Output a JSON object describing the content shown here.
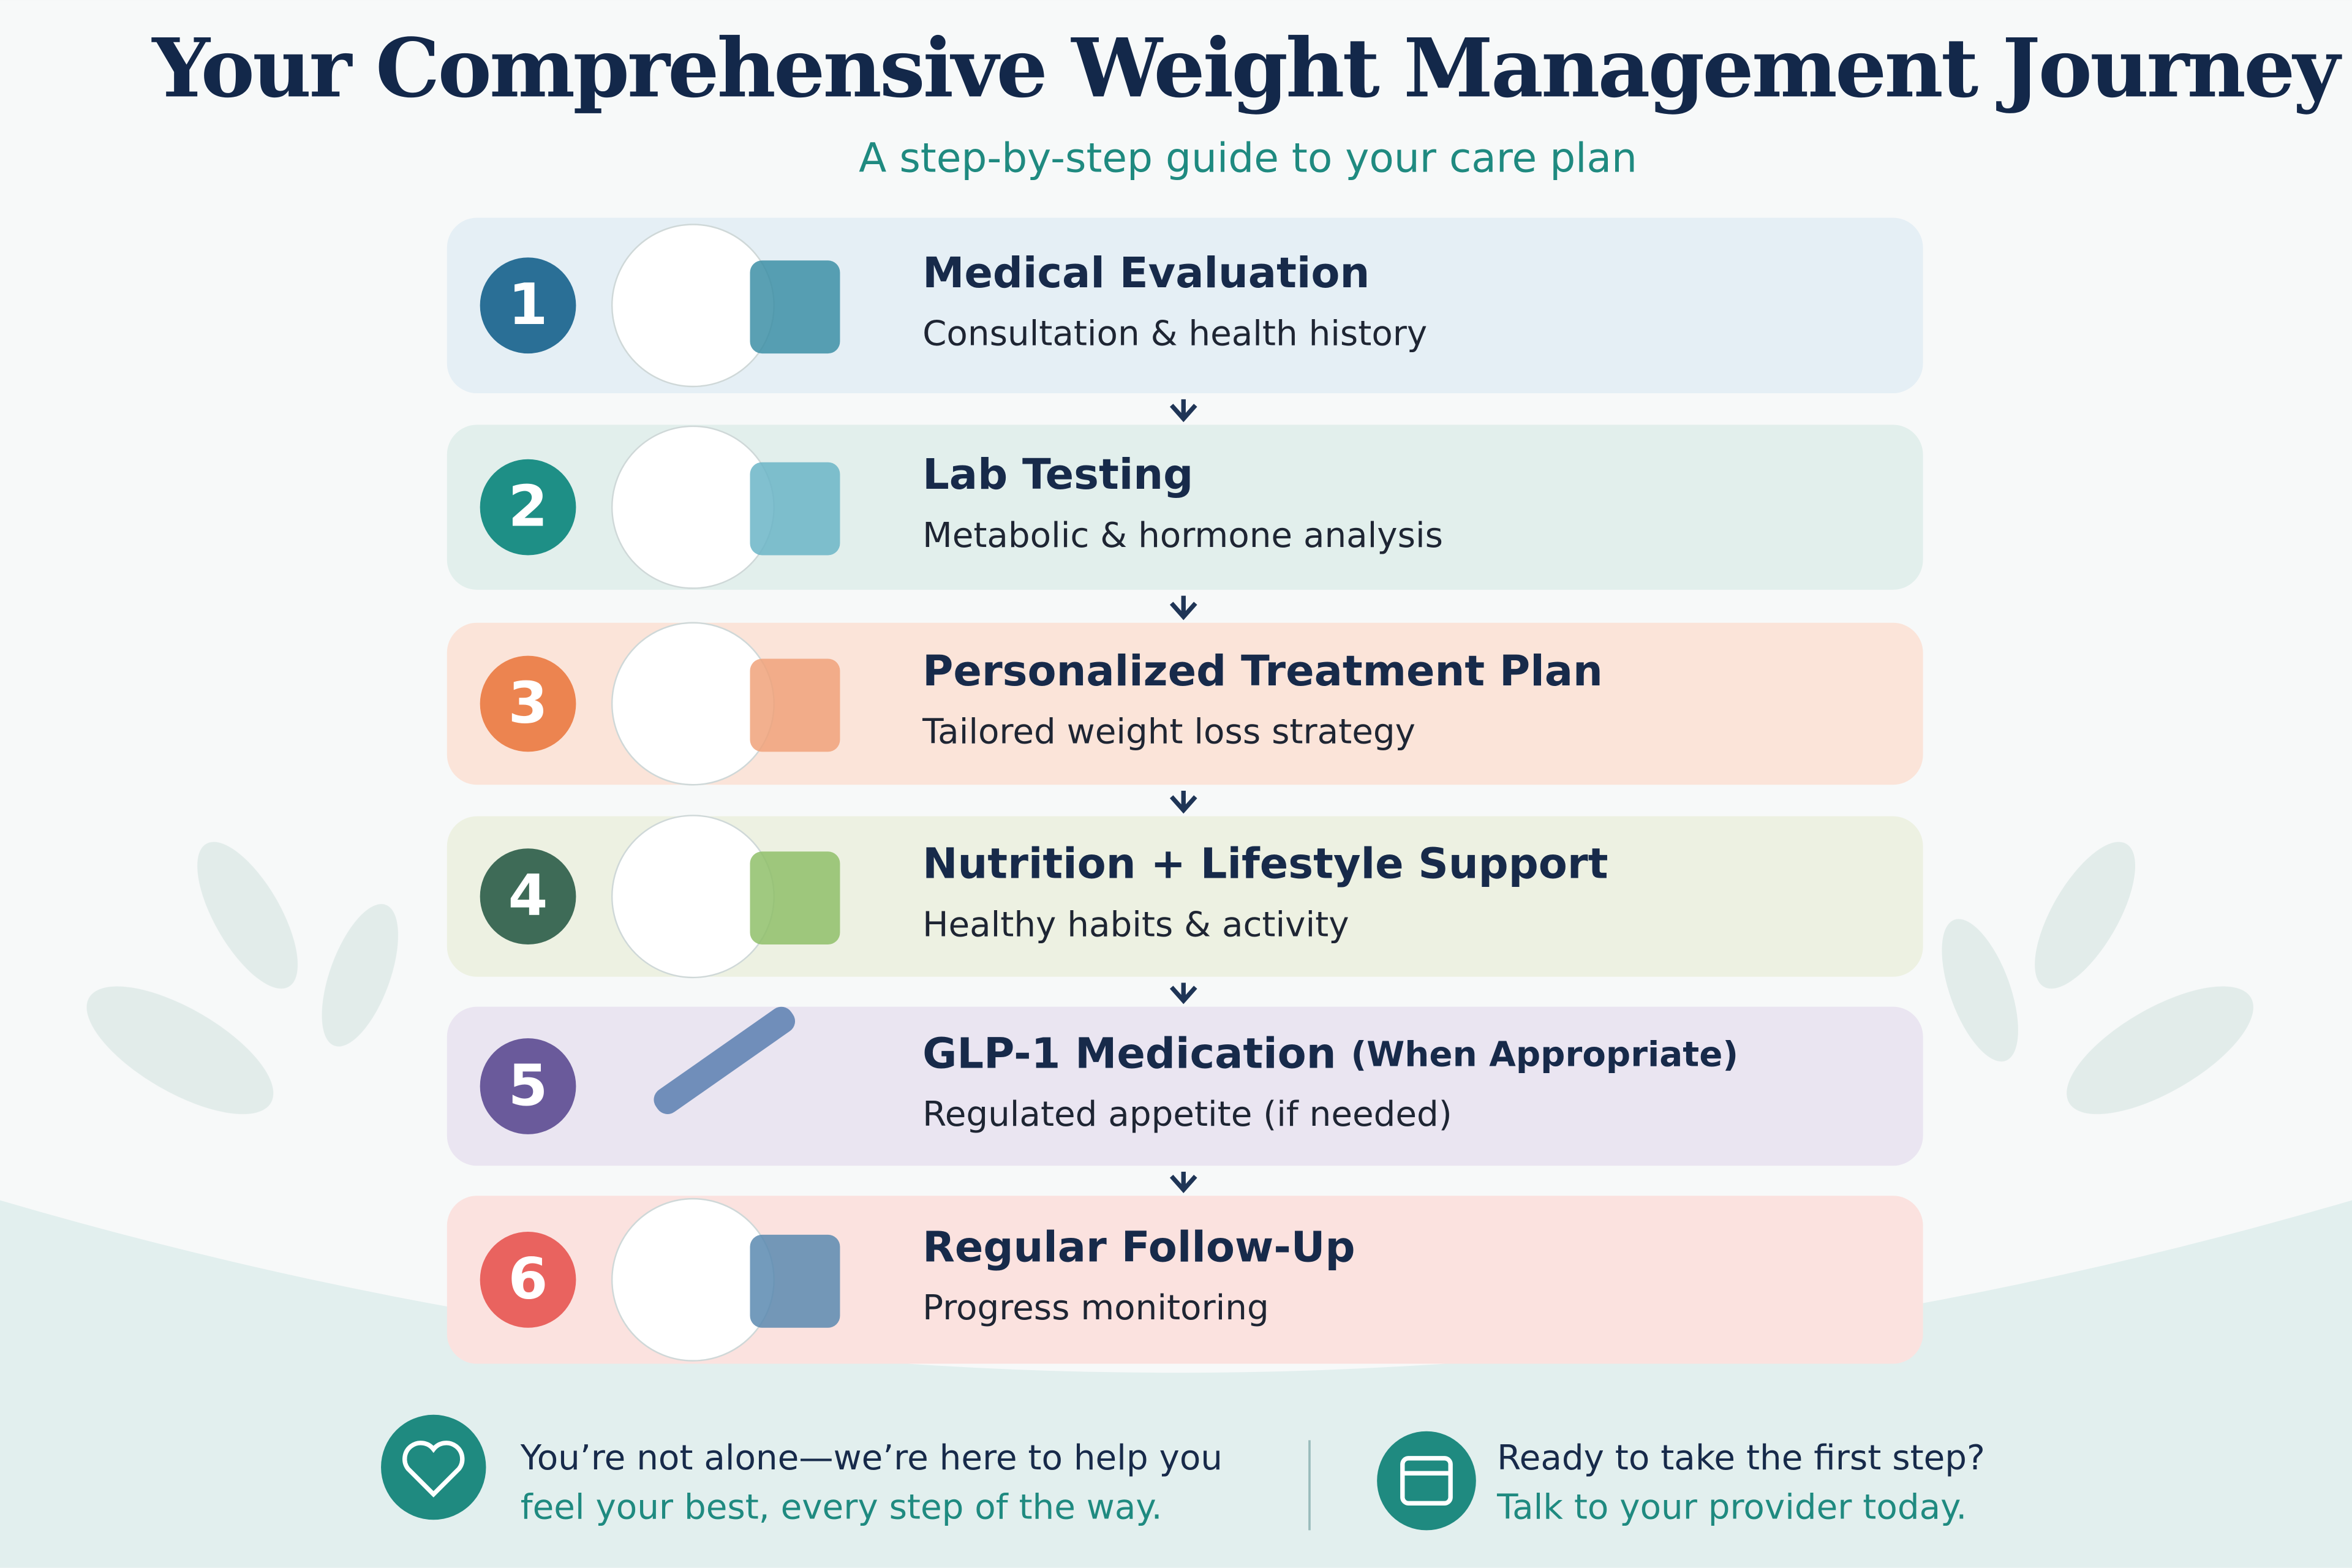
{
  "header": {
    "title": "Your Comprehensive Weight Management Journey",
    "subtitle": "A step-by-step guide to your care plan"
  },
  "steps": [
    {
      "number": 1,
      "title": "Medical Evaluation",
      "description": "Consultation & health history"
    },
    {
      "number": 2,
      "title": "Lab Testing",
      "description": "Metabolic & hormone analysis"
    },
    {
      "number": 3,
      "title": "Personalized Treatment Plan",
      "description": "Tailored weight loss strategy"
    },
    {
      "number": 4,
      "title": "Nutrition + Lifestyle Support",
      "description": "Healthy habits & activity"
    },
    {
      "number": 5,
      "title": "GLP-1 Medication",
      "title_note": "(When Appropriate)",
      "description": "Regulated appetite (if needed)"
    },
    {
      "number": 6,
      "title": "Regular Follow-Up",
      "description": "Progress monitoring"
    }
  ],
  "footer": {
    "left": {
      "line1": "You’re not alone—we’re here to help you",
      "line2": "feel your best, every step of the way."
    },
    "right": {
      "line1": "Ready to take the first step?",
      "line2": "Talk to your provider today."
    }
  }
}
